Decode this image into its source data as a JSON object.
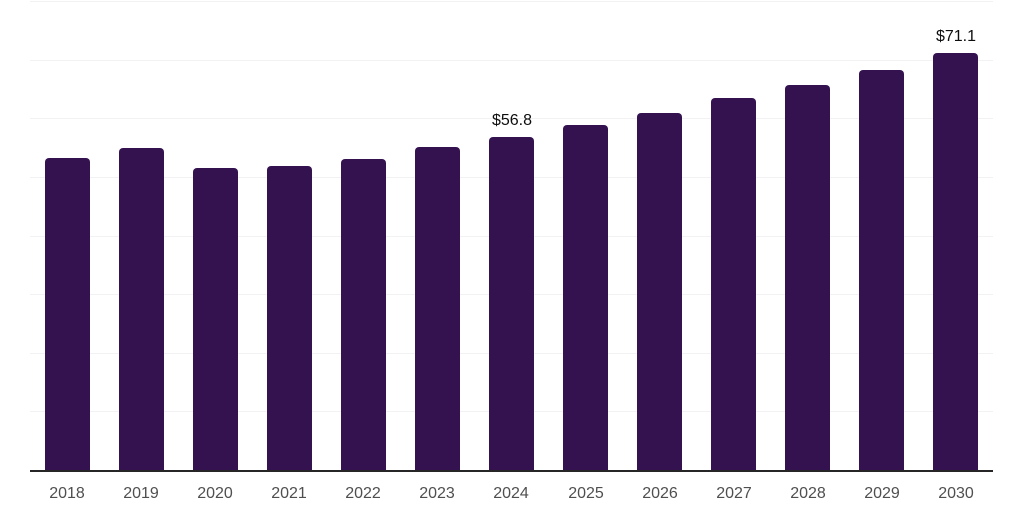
{
  "chart_data": {
    "type": "bar",
    "title": "",
    "xlabel": "",
    "ylabel": "",
    "categories": [
      "2018",
      "2019",
      "2020",
      "2021",
      "2022",
      "2023",
      "2024",
      "2025",
      "2026",
      "2027",
      "2028",
      "2029",
      "2030"
    ],
    "values": [
      53.3,
      55.0,
      51.5,
      51.9,
      53.1,
      55.1,
      56.8,
      58.9,
      60.9,
      63.4,
      65.7,
      68.3,
      71.1
    ],
    "annotations": [
      {
        "category": "2024",
        "label": "$56.8"
      },
      {
        "category": "2030",
        "label": "$71.1"
      }
    ],
    "ylim": [
      0,
      80
    ],
    "grid_step": 10,
    "grid": "on",
    "legend": "none",
    "y_tick_labels_visible": false,
    "colors": {
      "bar": "#341250",
      "axis_line": "#262626",
      "gridline": "#f2f2f4",
      "tick_label": "#4f4f4f",
      "annotation_text": "#0d0d0d",
      "background": "#ffffff"
    }
  }
}
